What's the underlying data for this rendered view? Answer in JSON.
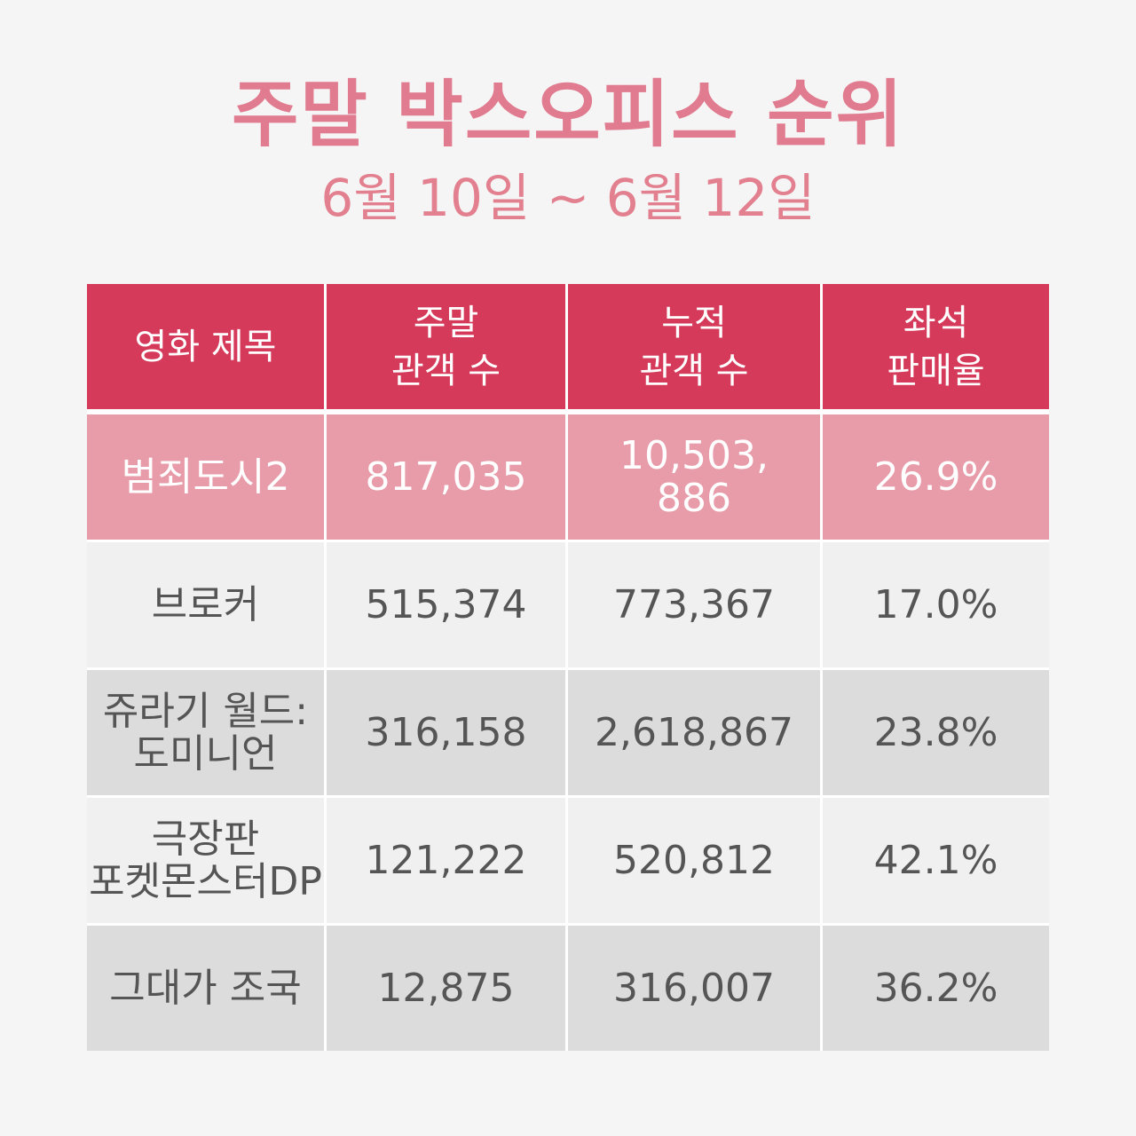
{
  "header": {
    "title": "주말 박스오피스 순위",
    "date_range": "6월 10일 ~ 6월 12일"
  },
  "table": {
    "columns": [
      {
        "lines": [
          "영화 제목"
        ]
      },
      {
        "lines": [
          "주말",
          "관객 수"
        ]
      },
      {
        "lines": [
          "누적",
          "관객 수"
        ]
      },
      {
        "lines": [
          "좌석",
          "판매율"
        ]
      }
    ],
    "rows": [
      {
        "title": [
          "범죄도시2"
        ],
        "weekend": "817,035",
        "cumulative": [
          "10,503,",
          "886"
        ],
        "seat_rate": "26.9%"
      },
      {
        "title": [
          "브로커"
        ],
        "weekend": "515,374",
        "cumulative": [
          "773,367"
        ],
        "seat_rate": "17.0%"
      },
      {
        "title": [
          "쥬라기 월드:",
          "도미니언"
        ],
        "weekend": "316,158",
        "cumulative": [
          "2,618,867"
        ],
        "seat_rate": "23.8%"
      },
      {
        "title": [
          "극장판",
          "포켓몬스터DP"
        ],
        "weekend": "121,222",
        "cumulative": [
          "520,812"
        ],
        "seat_rate": "42.1%"
      },
      {
        "title": [
          "그대가 조국"
        ],
        "weekend": "12,875",
        "cumulative": [
          "316,007"
        ],
        "seat_rate": "36.2%"
      }
    ]
  },
  "colors": {
    "title": "#e07b90",
    "header_bg": "#d53a5a",
    "highlight_row_bg": "#e89ba9",
    "row_light_bg": "#f0f0f0",
    "row_dark_bg": "#dcdcdc",
    "page_bg": "#f5f5f5"
  }
}
